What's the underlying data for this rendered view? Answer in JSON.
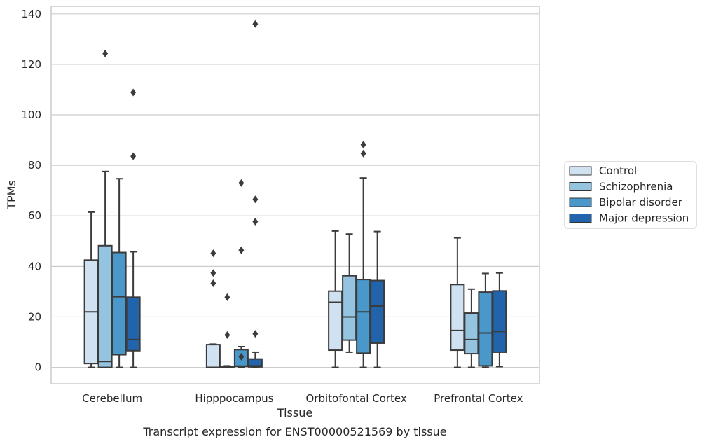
{
  "chart_data": {
    "type": "box",
    "title": "",
    "caption": "Transcript expression for ENST00000521569 by tissue",
    "xlabel": "Tissue",
    "ylabel": "TPMs",
    "ylim": [
      -6.5,
      143
    ],
    "yticks": [
      0,
      20,
      40,
      60,
      80,
      100,
      120,
      140
    ],
    "grid": "horizontal",
    "legend_position": "right",
    "categories": [
      "Cerebellum",
      "Hipppocampus",
      "Orbitofontal Cortex",
      "Prefrontal Cortex"
    ],
    "series": [
      {
        "name": "Control",
        "color": "#d0e1f2",
        "boxes": [
          {
            "whisker_low": 0,
            "q1": 1.5,
            "median": 22,
            "q3": 42.5,
            "whisker_high": 61.5,
            "outliers": []
          },
          {
            "whisker_low": 0,
            "q1": 0,
            "median": 0,
            "q3": 9,
            "whisker_high": 9.2,
            "outliers": [
              45.2,
              37.4,
              33.3
            ]
          },
          {
            "whisker_low": 0,
            "q1": 6.8,
            "median": 25.8,
            "q3": 30.2,
            "whisker_high": 54,
            "outliers": []
          },
          {
            "whisker_low": 0,
            "q1": 6.8,
            "median": 14.6,
            "q3": 32.8,
            "whisker_high": 51.3,
            "outliers": []
          }
        ]
      },
      {
        "name": "Schizophrenia",
        "color": "#94c4df",
        "boxes": [
          {
            "whisker_low": 0,
            "q1": 0,
            "median": 2.3,
            "q3": 48.2,
            "whisker_high": 77.6,
            "outliers": [
              124.3
            ]
          },
          {
            "whisker_low": 0,
            "q1": 0,
            "median": 0,
            "q3": 0.4,
            "whisker_high": 0.6,
            "outliers": [
              27.8,
              12.8
            ]
          },
          {
            "whisker_low": 6,
            "q1": 10.8,
            "median": 20,
            "q3": 36.3,
            "whisker_high": 52.8,
            "outliers": []
          },
          {
            "whisker_low": 0,
            "q1": 5.4,
            "median": 11,
            "q3": 21.5,
            "whisker_high": 31,
            "outliers": []
          }
        ]
      },
      {
        "name": "Bipolar disorder",
        "color": "#4a98c9",
        "boxes": [
          {
            "whisker_low": 0,
            "q1": 5,
            "median": 28,
            "q3": 45.5,
            "whisker_high": 74.7,
            "outliers": []
          },
          {
            "whisker_low": 0,
            "q1": 0.4,
            "median": 0.5,
            "q3": 7,
            "whisker_high": 8.2,
            "outliers": [
              73,
              46.4,
              4.2
            ]
          },
          {
            "whisker_low": 0,
            "q1": 5.6,
            "median": 22,
            "q3": 34.8,
            "whisker_high": 75,
            "outliers": [
              88.2,
              84.7
            ]
          },
          {
            "whisker_low": 0,
            "q1": 0.6,
            "median": 13.6,
            "q3": 29.8,
            "whisker_high": 37.2,
            "outliers": []
          }
        ]
      },
      {
        "name": "Major depression",
        "color": "#2164ab",
        "boxes": [
          {
            "whisker_low": 0,
            "q1": 6.6,
            "median": 11,
            "q3": 27.8,
            "whisker_high": 45.8,
            "outliers": [
              108.9,
              83.6
            ]
          },
          {
            "whisker_low": 0,
            "q1": 0.2,
            "median": 0.6,
            "q3": 3.3,
            "whisker_high": 6,
            "outliers": [
              136,
              66.5,
              57.7,
              13.3
            ]
          },
          {
            "whisker_low": 0,
            "q1": 9.6,
            "median": 24.3,
            "q3": 34.4,
            "whisker_high": 53.8,
            "outliers": []
          },
          {
            "whisker_low": 0.3,
            "q1": 6,
            "median": 14.2,
            "q3": 30.3,
            "whisker_high": 37.4,
            "outliers": []
          }
        ]
      }
    ]
  }
}
